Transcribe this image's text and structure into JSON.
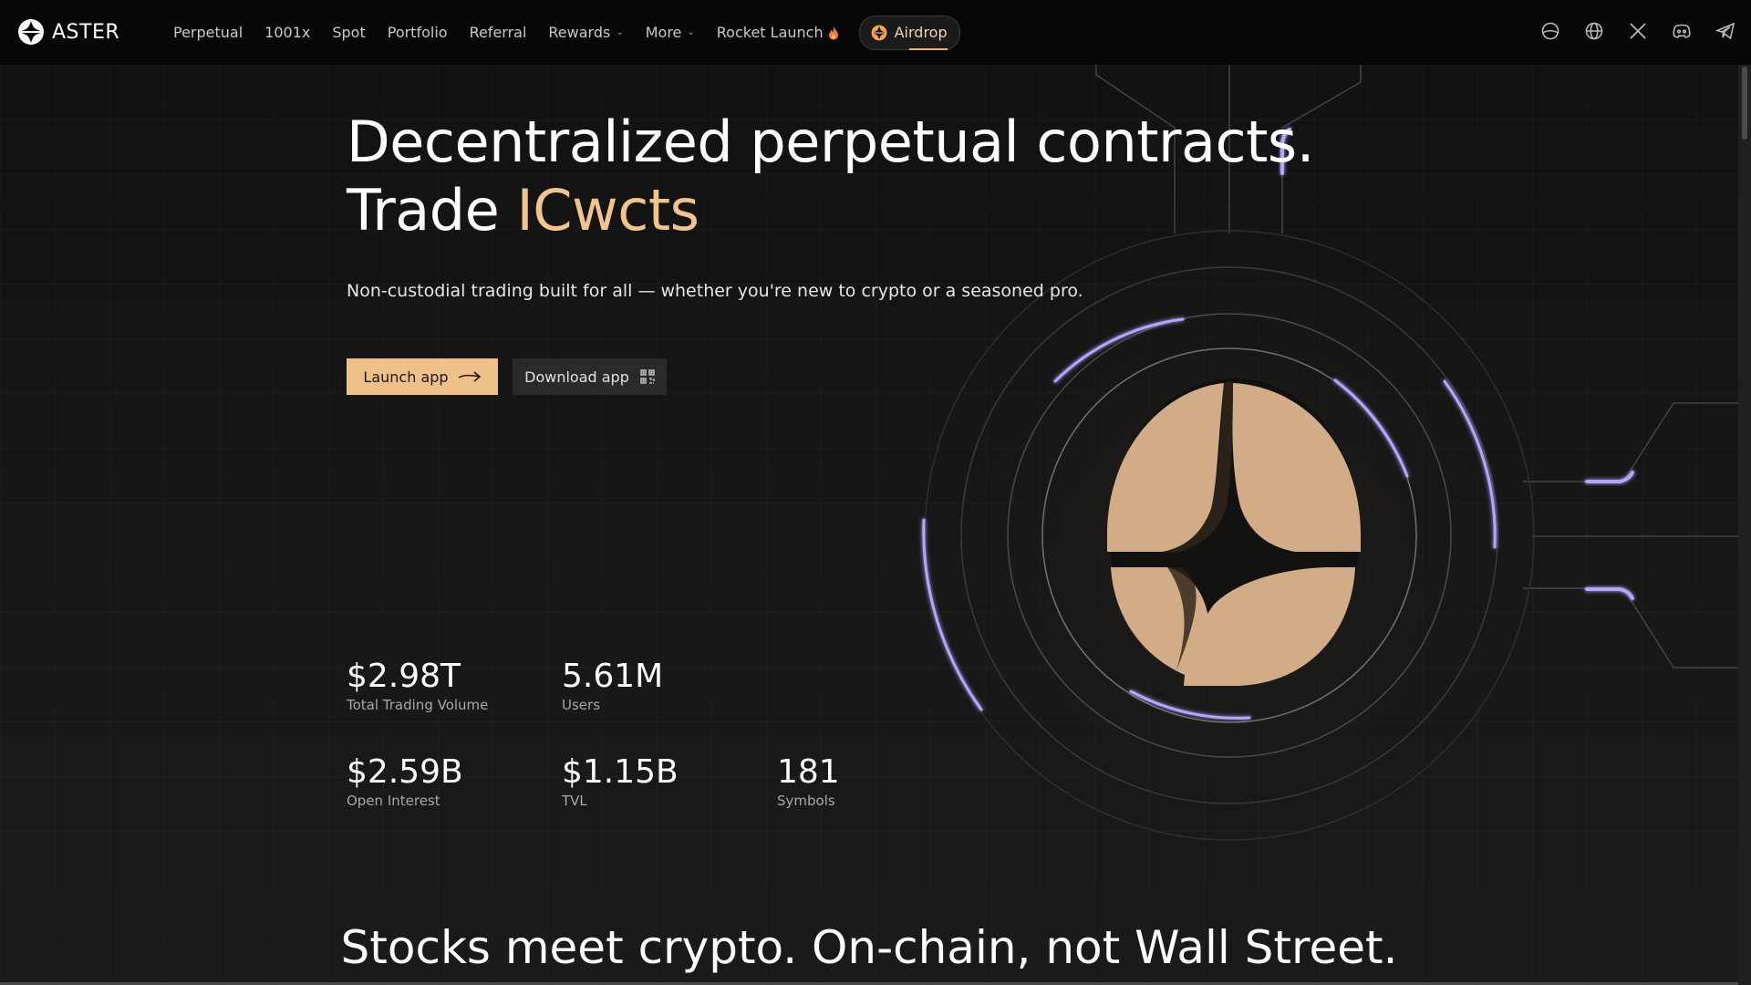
{
  "brand": {
    "name": "ASTER"
  },
  "nav": {
    "items": [
      {
        "label": "Perpetual",
        "dropdown": false
      },
      {
        "label": "1001x",
        "dropdown": false
      },
      {
        "label": "Spot",
        "dropdown": false
      },
      {
        "label": "Portfolio",
        "dropdown": false
      },
      {
        "label": "Referral",
        "dropdown": false
      },
      {
        "label": "Rewards",
        "dropdown": true
      },
      {
        "label": "More",
        "dropdown": true
      },
      {
        "label": "Rocket Launch",
        "dropdown": false,
        "icon": "flame-icon"
      }
    ],
    "airdrop": {
      "label": "Airdrop",
      "icon": "aster-logo-icon"
    }
  },
  "social": [
    "theme-toggle-icon",
    "globe-icon",
    "x-icon",
    "discord-icon",
    "telegram-icon"
  ],
  "hero": {
    "title_line1": "Decentralized perpetual contracts.",
    "title_line2_prefix": "Trade ",
    "title_line2_accent": "ICwcts",
    "subtitle": "Non-custodial trading built for all — whether you're new to crypto or a seasoned pro.",
    "launch_button": "Launch app",
    "download_button": "Download app"
  },
  "stats": [
    {
      "value": "$2.98T",
      "label": "Total Trading Volume"
    },
    {
      "value": "5.61M",
      "label": "Users"
    },
    {
      "value": "$2.59B",
      "label": "Open Interest"
    },
    {
      "value": "$1.15B",
      "label": "TVL"
    },
    {
      "value": "181",
      "label": "Symbols"
    }
  ],
  "section": {
    "title": "Stocks meet crypto. On-chain, not Wall Street."
  },
  "colors": {
    "accent": "#f0c08a",
    "glow": "#b3a6ff",
    "background": "#161616",
    "header": "#070707"
  }
}
